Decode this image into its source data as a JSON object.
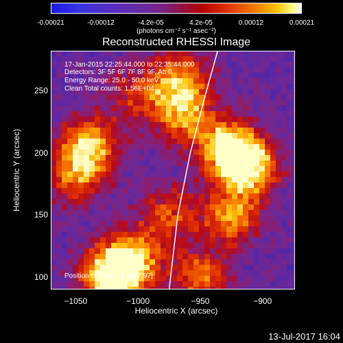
{
  "colorbar": {
    "ticks": [
      "-0.00021",
      "-0.00012",
      "-4.2e-05",
      "4.2e-05",
      "0.00012",
      "0.00021"
    ],
    "units_text": "(photons cm⁻² s⁻¹ asec⁻²)"
  },
  "title": "Reconstructed RHESSI Image",
  "info": {
    "line1": "17-Jan-2015 22:25:44.000 to 22:35:44.000",
    "line2": "Detectors: 3F 5F 6F 7F 8F 9F, Att 0",
    "line3": "Energy Range: 25.0 - 50.0 keV",
    "line4": "Clean     Total counts: 1.56E+04",
    "position": "Position of Peak = [-1017,97]"
  },
  "timestamp": "13-Jul-2017 16:04",
  "chart_data": {
    "type": "heatmap",
    "title": "Reconstructed RHESSI Image",
    "xlabel": "Heliocentric X (arcsec)",
    "ylabel": "Heliocentric Y (arcsec)",
    "xlim": [
      -1070,
      -874
    ],
    "ylim": [
      90,
      282
    ],
    "xticks": [
      -1050,
      -1000,
      -950,
      -900
    ],
    "xtick_labels": [
      "−1050",
      "−1000",
      "−950",
      "−900"
    ],
    "yticks": [
      100,
      150,
      200,
      250
    ],
    "ytick_labels": [
      "100",
      "150",
      "200",
      "250"
    ],
    "colorbar_range": [
      -0.00021,
      0.00021
    ],
    "peak_position": [
      -1017,
      97
    ],
    "bright_regions": [
      {
        "x": -1022,
        "y": 100,
        "level": 1.0
      },
      {
        "x": -1005,
        "y": 113,
        "level": 0.85
      },
      {
        "x": -1038,
        "y": 208,
        "level": 0.75
      },
      {
        "x": -1050,
        "y": 183,
        "level": 0.7
      },
      {
        "x": -965,
        "y": 232,
        "level": 0.75
      },
      {
        "x": -965,
        "y": 262,
        "level": 0.6
      },
      {
        "x": -910,
        "y": 190,
        "level": 0.95
      },
      {
        "x": -930,
        "y": 205,
        "level": 0.9
      },
      {
        "x": -925,
        "y": 150,
        "level": 0.75
      },
      {
        "x": -975,
        "y": 150,
        "level": 0.55
      },
      {
        "x": -950,
        "y": 100,
        "level": 0.65
      },
      {
        "x": -1000,
        "y": 248,
        "level": 0.45
      }
    ],
    "limb_x_at_y": [
      [
        -975,
        90
      ],
      [
        -968,
        150
      ],
      [
        -958,
        200
      ],
      [
        -945,
        250
      ],
      [
        -936,
        282
      ]
    ]
  }
}
